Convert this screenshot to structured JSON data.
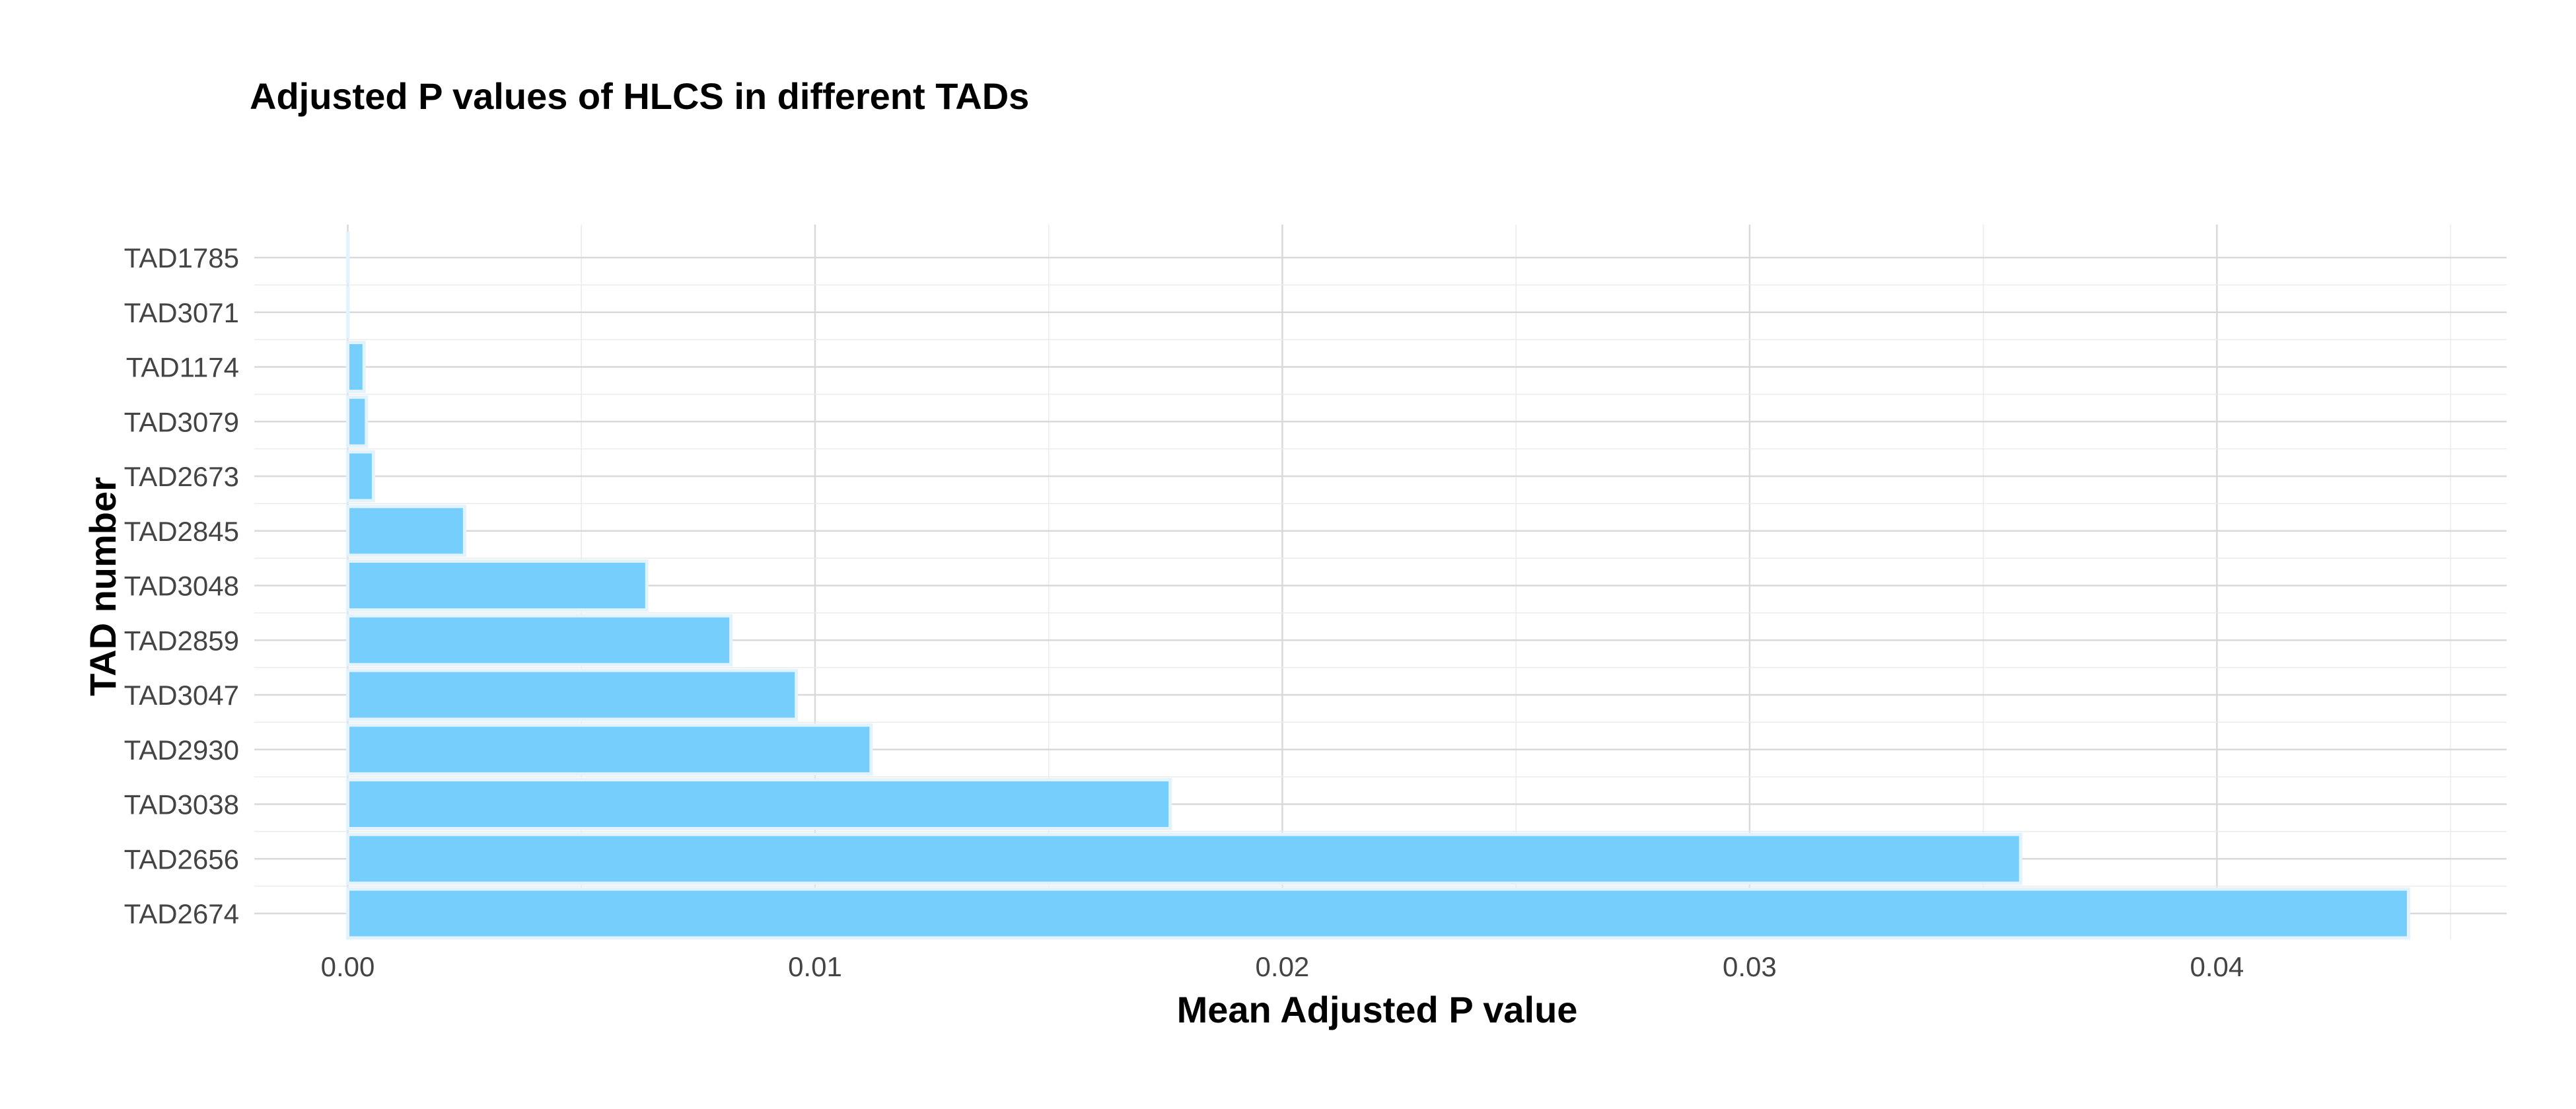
{
  "chart_data": {
    "type": "bar",
    "orientation": "horizontal",
    "title": "Adjusted P values of HLCS in different TADs",
    "xlabel": "Mean Adjusted P value",
    "ylabel": "TAD number",
    "categories": [
      "TAD1785",
      "TAD3071",
      "TAD1174",
      "TAD3079",
      "TAD2673",
      "TAD2845",
      "TAD3048",
      "TAD2859",
      "TAD3047",
      "TAD2930",
      "TAD3038",
      "TAD2656",
      "TAD2674"
    ],
    "values": [
      0.0,
      0.0,
      0.00035,
      0.0004,
      0.00055,
      0.0025,
      0.0064,
      0.0082,
      0.0096,
      0.0112,
      0.0176,
      0.0358,
      0.0441
    ],
    "xlim": [
      -0.002,
      0.0462
    ],
    "xticks": [
      0.0,
      0.01,
      0.02,
      0.03,
      0.04
    ],
    "xtick_labels": [
      "0.00",
      "0.01",
      "0.02",
      "0.03",
      "0.04"
    ],
    "grid": true,
    "legend": "none",
    "colors": {
      "bar_fill": "#75CEFC",
      "bar_outline": "#E3F3FD",
      "grid_major": "#d9d9d9",
      "grid_minor": "#ebebeb"
    }
  }
}
